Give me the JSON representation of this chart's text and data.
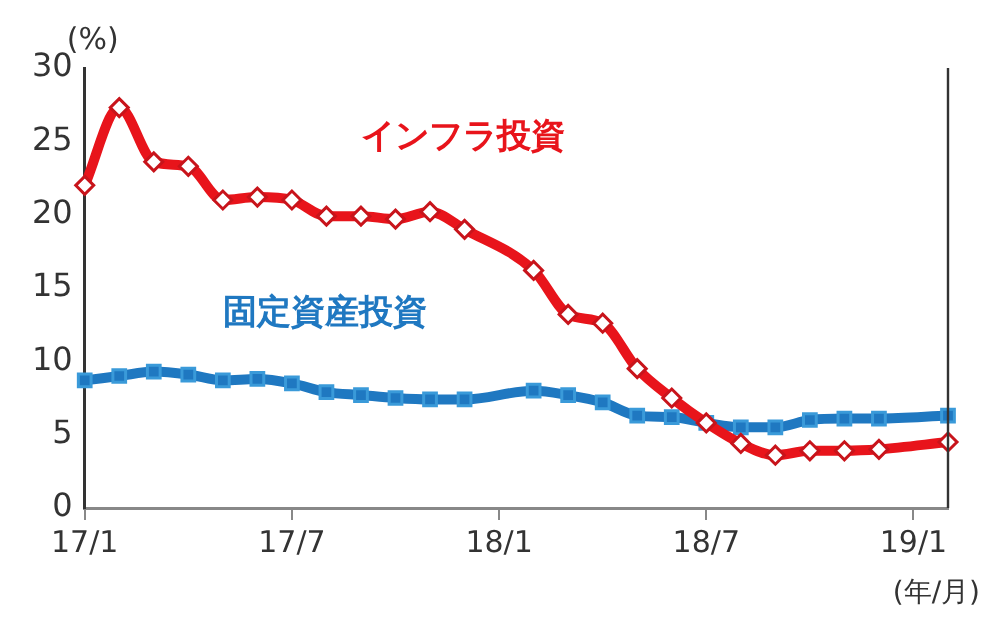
{
  "chart_data": {
    "type": "line",
    "ylabel": "(%)",
    "xlabel": "(年/月)",
    "categories": [
      "17/1",
      null,
      null,
      null,
      null,
      null,
      "17/7",
      null,
      null,
      null,
      null,
      null,
      "18/1",
      null,
      null,
      null,
      null,
      null,
      "18/7",
      null,
      null,
      null,
      null,
      null,
      "19/1",
      null
    ],
    "series": [
      {
        "name": "インフラ投資",
        "color": "#e8141b",
        "marker": "diamond",
        "values": [
          22.0,
          27.3,
          23.6,
          23.3,
          21.0,
          21.2,
          21.0,
          19.9,
          19.9,
          19.7,
          20.2,
          19.0,
          null,
          16.2,
          13.2,
          12.6,
          9.5,
          7.5,
          5.8,
          4.4,
          3.6,
          3.9,
          3.9,
          4.0,
          null,
          4.5
        ]
      },
      {
        "name": "固定資産投資",
        "color": "#1f78c1",
        "marker": "square",
        "values": [
          8.7,
          9.0,
          9.3,
          9.1,
          8.7,
          8.8,
          8.5,
          7.9,
          7.7,
          7.5,
          7.4,
          7.4,
          null,
          8.0,
          7.7,
          7.2,
          6.3,
          6.2,
          5.8,
          5.5,
          5.5,
          6.0,
          6.1,
          6.1,
          null,
          6.3
        ]
      }
    ],
    "ylim": [
      0,
      30
    ],
    "yticks": [
      0,
      5,
      10,
      15,
      20,
      25,
      30
    ],
    "grid": false,
    "legend": false
  }
}
